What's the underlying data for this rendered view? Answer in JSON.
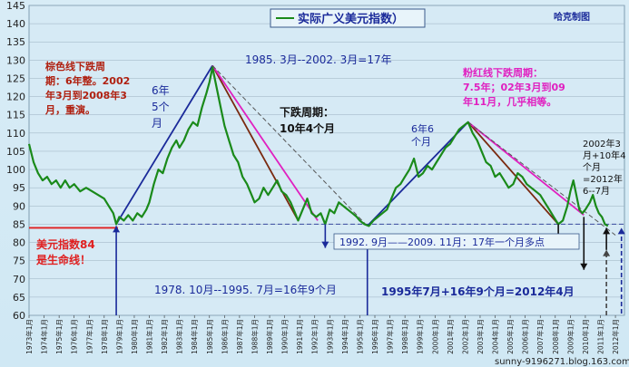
{
  "chart_data": {
    "type": "line",
    "title": "实际广义美元指数）",
    "author": "哈克制图",
    "watermark": "sunny-9196271.blog.163.com",
    "ylim": [
      60,
      145
    ],
    "y_ticks": [
      "60",
      "65",
      "70",
      "75",
      "80",
      "85",
      "90",
      "95",
      "100",
      "105",
      "110",
      "115",
      "120",
      "125",
      "130",
      "135",
      "140",
      "145"
    ],
    "x_labels": [
      "1973年1月",
      "1974年1月",
      "1975年1月",
      "1976年1月",
      "1977年1月",
      "1978年1月",
      "1979年1月",
      "1980年1月",
      "1981年1月",
      "1982年1月",
      "1983年1月",
      "1984年1月",
      "1985年1月",
      "1986年1月",
      "1987年1月",
      "1988年1月",
      "1989年1月",
      "1990年1月",
      "1991年1月",
      "1992年1月",
      "1993年1月",
      "1994年1月",
      "1995年1月",
      "1996年1月",
      "1997年1月",
      "1998年1月",
      "1999年1月",
      "2000年1月",
      "2001年1月",
      "2002年1月",
      "2003年1月",
      "2004年1月",
      "2005年1月",
      "2006年1月",
      "2007年1月",
      "2008年1月",
      "2009年1月",
      "2010年1月",
      "2011年1月",
      "2012年1月"
    ],
    "series": [
      {
        "name": "实际广义美元指数",
        "color": "#1a8a1a",
        "points": [
          [
            1973.0,
            107
          ],
          [
            1973.3,
            102
          ],
          [
            1973.6,
            99
          ],
          [
            1973.9,
            97
          ],
          [
            1974.2,
            98
          ],
          [
            1974.5,
            96
          ],
          [
            1974.8,
            97
          ],
          [
            1975.1,
            95
          ],
          [
            1975.4,
            97
          ],
          [
            1975.7,
            95
          ],
          [
            1976.0,
            96
          ],
          [
            1976.4,
            94
          ],
          [
            1976.8,
            95
          ],
          [
            1977.2,
            94
          ],
          [
            1977.6,
            93
          ],
          [
            1978.0,
            92
          ],
          [
            1978.3,
            90
          ],
          [
            1978.6,
            88
          ],
          [
            1978.8,
            85
          ],
          [
            1979.0,
            87
          ],
          [
            1979.3,
            86
          ],
          [
            1979.6,
            87.5
          ],
          [
            1979.9,
            86
          ],
          [
            1980.2,
            88
          ],
          [
            1980.5,
            87
          ],
          [
            1980.8,
            89
          ],
          [
            1981.0,
            91
          ],
          [
            1981.3,
            96
          ],
          [
            1981.6,
            100
          ],
          [
            1981.9,
            99
          ],
          [
            1982.2,
            103
          ],
          [
            1982.5,
            106
          ],
          [
            1982.8,
            108
          ],
          [
            1983.0,
            106
          ],
          [
            1983.3,
            108
          ],
          [
            1983.6,
            111
          ],
          [
            1983.9,
            113
          ],
          [
            1984.2,
            112
          ],
          [
            1984.5,
            117
          ],
          [
            1984.8,
            121
          ],
          [
            1985.0,
            124
          ],
          [
            1985.2,
            128
          ],
          [
            1985.4,
            124
          ],
          [
            1985.6,
            120
          ],
          [
            1985.8,
            116
          ],
          [
            1986.0,
            112
          ],
          [
            1986.3,
            108
          ],
          [
            1986.6,
            104
          ],
          [
            1986.9,
            102
          ],
          [
            1987.2,
            98
          ],
          [
            1987.5,
            96
          ],
          [
            1987.8,
            93
          ],
          [
            1988.0,
            91
          ],
          [
            1988.3,
            92
          ],
          [
            1988.6,
            95
          ],
          [
            1988.9,
            93
          ],
          [
            1989.2,
            95
          ],
          [
            1989.5,
            97
          ],
          [
            1989.8,
            94
          ],
          [
            1990.1,
            93
          ],
          [
            1990.4,
            91
          ],
          [
            1990.7,
            88
          ],
          [
            1990.9,
            86
          ],
          [
            1991.2,
            89
          ],
          [
            1991.5,
            92
          ],
          [
            1991.8,
            88
          ],
          [
            1992.1,
            87
          ],
          [
            1992.4,
            88
          ],
          [
            1992.7,
            85
          ],
          [
            1993.0,
            89
          ],
          [
            1993.3,
            88
          ],
          [
            1993.6,
            91
          ],
          [
            1993.9,
            90
          ],
          [
            1994.2,
            89
          ],
          [
            1994.5,
            88
          ],
          [
            1994.8,
            87
          ],
          [
            1995.0,
            86
          ],
          [
            1995.3,
            85
          ],
          [
            1995.6,
            84.5
          ],
          [
            1995.9,
            86
          ],
          [
            1996.2,
            87
          ],
          [
            1996.5,
            88
          ],
          [
            1996.8,
            89
          ],
          [
            1997.1,
            92
          ],
          [
            1997.4,
            95
          ],
          [
            1997.7,
            96
          ],
          [
            1998.0,
            98
          ],
          [
            1998.3,
            100
          ],
          [
            1998.6,
            103
          ],
          [
            1998.9,
            98
          ],
          [
            1999.2,
            99
          ],
          [
            1999.5,
            101
          ],
          [
            1999.8,
            100
          ],
          [
            2000.1,
            102
          ],
          [
            2000.4,
            104
          ],
          [
            2000.7,
            106
          ],
          [
            2001.0,
            107
          ],
          [
            2001.3,
            109
          ],
          [
            2001.6,
            111
          ],
          [
            2001.9,
            112
          ],
          [
            2002.2,
            113
          ],
          [
            2002.5,
            110
          ],
          [
            2002.8,
            108
          ],
          [
            2003.1,
            105
          ],
          [
            2003.4,
            102
          ],
          [
            2003.7,
            101
          ],
          [
            2004.0,
            98
          ],
          [
            2004.3,
            99
          ],
          [
            2004.6,
            97
          ],
          [
            2004.9,
            95
          ],
          [
            2005.2,
            96
          ],
          [
            2005.5,
            99
          ],
          [
            2005.8,
            98
          ],
          [
            2006.1,
            96
          ],
          [
            2006.4,
            95
          ],
          [
            2006.7,
            94
          ],
          [
            2007.0,
            93
          ],
          [
            2007.3,
            91
          ],
          [
            2007.6,
            89
          ],
          [
            2007.9,
            87
          ],
          [
            2008.2,
            85
          ],
          [
            2008.5,
            86
          ],
          [
            2008.8,
            90
          ],
          [
            2009.0,
            94
          ],
          [
            2009.2,
            97
          ],
          [
            2009.4,
            93
          ],
          [
            2009.6,
            89
          ],
          [
            2009.8,
            88
          ],
          [
            2010.0,
            89
          ],
          [
            2010.3,
            91
          ],
          [
            2010.5,
            93
          ],
          [
            2010.7,
            90
          ],
          [
            2010.9,
            88
          ],
          [
            2011.1,
            87
          ],
          [
            2011.3,
            85
          ],
          [
            2011.5,
            84.5
          ]
        ]
      }
    ],
    "reference_line": {
      "y": 84,
      "color": "#e02020",
      "label": "美元指数84是生命线!"
    },
    "dashed_level": {
      "y": 85,
      "color": "#3a4aa0"
    },
    "trend_lines": [
      {
        "name": "1978-1985 up",
        "color": "#1a2a9a",
        "from": [
          1978.8,
          85
        ],
        "to": [
          1985.2,
          128.5
        ],
        "style": "solid"
      },
      {
        "name": "1995-2002 up",
        "color": "#1a2a9a",
        "from": [
          1995.5,
          84.5
        ],
        "to": [
          2002.2,
          113
        ],
        "style": "solid"
      },
      {
        "name": "brown down 1",
        "color": "#7a2a10",
        "from": [
          1985.2,
          128.5
        ],
        "to": [
          1990.9,
          86
        ],
        "style": "solid"
      },
      {
        "name": "pink down 1",
        "color": "#e020c0",
        "from": [
          1985.2,
          128.5
        ],
        "to": [
          1992.2,
          86
        ],
        "style": "solid"
      },
      {
        "name": "grey down 1",
        "color": "#555555",
        "from": [
          1985.2,
          128.5
        ],
        "to": [
          1995.5,
          84.5
        ],
        "style": "dashed"
      },
      {
        "name": "brown down 2",
        "color": "#7a2a10",
        "from": [
          2002.2,
          113
        ],
        "to": [
          2008.2,
          85
        ],
        "style": "solid"
      },
      {
        "name": "pink down 2",
        "color": "#e020c0",
        "from": [
          2002.2,
          113
        ],
        "to": [
          2009.9,
          87.5
        ],
        "style": "solid"
      },
      {
        "name": "grey down 2",
        "color": "#555555",
        "from": [
          2002.2,
          113
        ],
        "to": [
          2012.0,
          82
        ],
        "style": "dashed"
      }
    ],
    "annotations": [
      {
        "id": "brown",
        "lines": [
          "棕色线下跌周",
          "期：6年整。2002",
          "年3月到2008年3",
          "月，重演。"
        ],
        "color": "#b02010"
      },
      {
        "id": "up1",
        "lines": [
          "6年",
          "5个",
          "月"
        ],
        "color": "#1a2a9a"
      },
      {
        "id": "period1",
        "lines": [
          "1985. 3月--2002. 3月=17年"
        ],
        "color": "#1a2a9a"
      },
      {
        "id": "down",
        "lines": [
          "下跌周期：",
          "10年4个月"
        ],
        "color": "#111111"
      },
      {
        "id": "up2",
        "lines": [
          "6年6",
          "个月"
        ],
        "color": "#1a2a9a"
      },
      {
        "id": "pink",
        "lines": [
          "粉红线下跌周期：",
          "7.5年；02年3月到09",
          "年11月，几乎相等。"
        ],
        "color": "#e020c0"
      },
      {
        "id": "proj",
        "lines": [
          "2002年3",
          "月+10年4",
          "个月",
          "=2012年",
          "6--7月"
        ],
        "color": "#111111"
      },
      {
        "id": "box",
        "lines": [
          "1992. 9月——2009. 11月：17年一个月多点"
        ],
        "color": "#1a2a9a"
      },
      {
        "id": "bottom1",
        "lines": [
          "1978. 10月--1995. 7月=16年9个月"
        ],
        "color": "#1a2a9a"
      },
      {
        "id": "bottom2",
        "lines": [
          "1995年7月+16年9个月=2012年4月"
        ],
        "color": "#1a2a9a"
      },
      {
        "id": "life",
        "lines": [
          "美元指数84",
          "是生命线！"
        ],
        "color": "#e02020"
      }
    ]
  }
}
